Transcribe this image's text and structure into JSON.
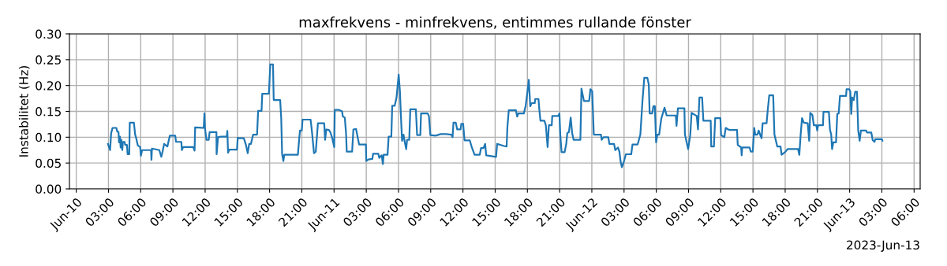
{
  "chart_data": {
    "type": "line",
    "title": "maxfrekvens - minfrekvens, entimmes rullande fönster",
    "ylabel": "Instabilitet (Hz)",
    "annotations": [
      "2023-Jun-13"
    ],
    "xlim": [
      "2023-06-09T23:22",
      "2023-06-13T06:34"
    ],
    "xticks": [
      {
        "value": "2023-06-10T00:00",
        "label": "Jun-10"
      },
      {
        "value": "2023-06-10T03:00",
        "label": "03:00"
      },
      {
        "value": "2023-06-10T06:00",
        "label": "06:00"
      },
      {
        "value": "2023-06-10T09:00",
        "label": "09:00"
      },
      {
        "value": "2023-06-10T12:00",
        "label": "12:00"
      },
      {
        "value": "2023-06-10T15:00",
        "label": "15:00"
      },
      {
        "value": "2023-06-10T18:00",
        "label": "18:00"
      },
      {
        "value": "2023-06-10T21:00",
        "label": "21:00"
      },
      {
        "value": "2023-06-11T00:00",
        "label": "Jun-11"
      },
      {
        "value": "2023-06-11T03:00",
        "label": "03:00"
      },
      {
        "value": "2023-06-11T06:00",
        "label": "06:00"
      },
      {
        "value": "2023-06-11T09:00",
        "label": "09:00"
      },
      {
        "value": "2023-06-11T12:00",
        "label": "12:00"
      },
      {
        "value": "2023-06-11T15:00",
        "label": "15:00"
      },
      {
        "value": "2023-06-11T18:00",
        "label": "18:00"
      },
      {
        "value": "2023-06-11T21:00",
        "label": "21:00"
      },
      {
        "value": "2023-06-12T00:00",
        "label": "Jun-12"
      },
      {
        "value": "2023-06-12T03:00",
        "label": "03:00"
      },
      {
        "value": "2023-06-12T06:00",
        "label": "06:00"
      },
      {
        "value": "2023-06-12T09:00",
        "label": "09:00"
      },
      {
        "value": "2023-06-12T12:00",
        "label": "12:00"
      },
      {
        "value": "2023-06-12T15:00",
        "label": "15:00"
      },
      {
        "value": "2023-06-12T18:00",
        "label": "18:00"
      },
      {
        "value": "2023-06-12T21:00",
        "label": "21:00"
      },
      {
        "value": "2023-06-13T00:00",
        "label": "Jun-13"
      },
      {
        "value": "2023-06-13T03:00",
        "label": "03:00"
      },
      {
        "value": "2023-06-13T06:00",
        "label": "06:00"
      }
    ],
    "ylim": [
      0,
      0.3
    ],
    "yticks": [
      {
        "value": 0,
        "label": "0.00"
      },
      {
        "value": 0.05,
        "label": "0.05"
      },
      {
        "value": 0.1,
        "label": "0.10"
      },
      {
        "value": 0.15,
        "label": "0.15"
      },
      {
        "value": 0.2,
        "label": "0.20"
      },
      {
        "value": 0.25,
        "label": "0.25"
      },
      {
        "value": 0.3,
        "label": "0.30"
      }
    ],
    "grid": true,
    "marker": "none",
    "line_style": "solid",
    "series": [
      {
        "color": "#1f77b4",
        "x": [
          "2023-06-10T02:57",
          "2023-06-10T03:09",
          "2023-06-10T03:15",
          "2023-06-10T03:23",
          "2023-06-10T03:44",
          "2023-06-10T03:49",
          "2023-06-10T03:56",
          "2023-06-10T03:59",
          "2023-06-10T04:04",
          "2023-06-10T04:08",
          "2023-06-10T04:12",
          "2023-06-10T04:17",
          "2023-06-10T04:21",
          "2023-06-10T04:30",
          "2023-06-10T04:33",
          "2023-06-10T04:43",
          "2023-06-10T04:47",
          "2023-06-10T04:56",
          "2023-06-10T04:59",
          "2023-06-10T05:22",
          "2023-06-10T05:29",
          "2023-06-10T05:35",
          "2023-06-10T05:44",
          "2023-06-10T05:57",
          "2023-06-10T06:01",
          "2023-06-10T06:08",
          "2023-06-10T06:58",
          "2023-06-10T07:00",
          "2023-06-10T07:03",
          "2023-06-10T07:44",
          "2023-06-10T07:55",
          "2023-06-10T08:02",
          "2023-06-10T08:11",
          "2023-06-10T08:29",
          "2023-06-10T08:43",
          "2023-06-10T09:13",
          "2023-06-10T09:17",
          "2023-06-10T09:47",
          "2023-06-10T09:50",
          "2023-06-10T09:57",
          "2023-06-10T10:53",
          "2023-06-10T11:01",
          "2023-06-10T11:04",
          "2023-06-10T11:52",
          "2023-06-10T11:56",
          "2023-06-10T11:59",
          "2023-06-10T12:07",
          "2023-06-10T12:20",
          "2023-06-10T12:25",
          "2023-06-10T13:03",
          "2023-06-10T13:04",
          "2023-06-10T13:12",
          "2023-06-10T13:28",
          "2023-06-10T14:01",
          "2023-06-10T14:04",
          "2023-06-10T14:08",
          "2023-06-10T14:15",
          "2023-06-10T14:58",
          "2023-06-10T15:02",
          "2023-06-10T15:10",
          "2023-06-10T15:36",
          "2023-06-10T15:48",
          "2023-06-10T15:58",
          "2023-06-10T16:06",
          "2023-06-10T16:16",
          "2023-06-10T16:28",
          "2023-06-10T16:50",
          "2023-06-10T16:56",
          "2023-06-10T17:15",
          "2023-06-10T17:19",
          "2023-06-10T17:56",
          "2023-06-10T18:04",
          "2023-06-10T18:19",
          "2023-06-10T18:23",
          "2023-06-10T18:59",
          "2023-06-10T19:05",
          "2023-06-10T19:10",
          "2023-06-10T19:17",
          "2023-06-10T19:22",
          "2023-06-10T20:38",
          "2023-06-10T20:46",
          "2023-06-10T20:50",
          "2023-06-10T21:00",
          "2023-06-10T21:04",
          "2023-06-10T21:49",
          "2023-06-10T21:56",
          "2023-06-10T22:08",
          "2023-06-10T22:18",
          "2023-06-10T22:30",
          "2023-06-10T23:05",
          "2023-06-10T23:10",
          "2023-06-10T23:17",
          "2023-06-10T23:31",
          "2023-06-10T23:39",
          "2023-06-10T23:50",
          "2023-06-11T00:01",
          "2023-06-11T00:04",
          "2023-06-11T00:26",
          "2023-06-11T00:45",
          "2023-06-11T00:49",
          "2023-06-11T01:00",
          "2023-06-11T01:07",
          "2023-06-11T01:11",
          "2023-06-11T01:41",
          "2023-06-11T01:48",
          "2023-06-11T02:03",
          "2023-06-11T02:13",
          "2023-06-11T02:20",
          "2023-06-11T02:58",
          "2023-06-11T03:00",
          "2023-06-11T03:12",
          "2023-06-11T03:34",
          "2023-06-11T03:38",
          "2023-06-11T04:07",
          "2023-06-11T04:13",
          "2023-06-11T04:26",
          "2023-06-11T04:33",
          "2023-06-11T04:37",
          "2023-06-11T04:59",
          "2023-06-11T05:05",
          "2023-06-11T05:20",
          "2023-06-11T05:25",
          "2023-06-11T05:39",
          "2023-06-11T05:49",
          "2023-06-11T06:01",
          "2023-06-11T06:08",
          "2023-06-11T06:13",
          "2023-06-11T06:20",
          "2023-06-11T06:28",
          "2023-06-11T06:35",
          "2023-06-11T06:43",
          "2023-06-11T06:48",
          "2023-06-11T07:00",
          "2023-06-11T07:06",
          "2023-06-11T07:37",
          "2023-06-11T07:44",
          "2023-06-11T08:02",
          "2023-06-11T08:06",
          "2023-06-11T08:43",
          "2023-06-11T08:50",
          "2023-06-11T08:58",
          "2023-06-11T09:27",
          "2023-06-11T09:56",
          "2023-06-11T10:26",
          "2023-06-11T10:55",
          "2023-06-11T11:02",
          "2023-06-11T11:07",
          "2023-06-11T11:20",
          "2023-06-11T11:28",
          "2023-06-11T11:47",
          "2023-06-11T11:51",
          "2023-06-11T12:01",
          "2023-06-11T12:09",
          "2023-06-11T12:38",
          "2023-06-11T12:50",
          "2023-06-11T13:05",
          "2023-06-11T13:34",
          "2023-06-11T13:41",
          "2023-06-11T13:55",
          "2023-06-11T14:04",
          "2023-06-11T14:10",
          "2023-06-11T15:05",
          "2023-06-11T15:11",
          "2023-06-11T15:49",
          "2023-06-11T16:04",
          "2023-06-11T16:08",
          "2023-06-11T16:16",
          "2023-06-11T16:56",
          "2023-06-11T17:03",
          "2023-06-11T17:10",
          "2023-06-11T17:40",
          "2023-06-11T17:50",
          "2023-06-11T17:59",
          "2023-06-11T18:08",
          "2023-06-11T18:16",
          "2023-06-11T18:24",
          "2023-06-11T18:41",
          "2023-06-11T18:44",
          "2023-06-11T19:02",
          "2023-06-11T19:06",
          "2023-06-11T19:13",
          "2023-06-11T19:35",
          "2023-06-11T19:43",
          "2023-06-11T19:53",
          "2023-06-11T20:00",
          "2023-06-11T20:16",
          "2023-06-11T20:19",
          "2023-06-11T20:53",
          "2023-06-11T20:59",
          "2023-06-11T21:04",
          "2023-06-11T21:11",
          "2023-06-11T21:28",
          "2023-06-11T21:37",
          "2023-06-11T21:43",
          "2023-06-11T21:52",
          "2023-06-11T22:02",
          "2023-06-11T22:10",
          "2023-06-11T22:18",
          "2023-06-11T22:56",
          "2023-06-11T23:02",
          "2023-06-11T23:16",
          "2023-06-11T23:45",
          "2023-06-11T23:52",
          "2023-06-12T00:02",
          "2023-06-12T00:11",
          "2023-06-12T00:51",
          "2023-06-12T00:55",
          "2023-06-12T01:05",
          "2023-06-12T01:32",
          "2023-06-12T01:38",
          "2023-06-12T02:04",
          "2023-06-12T02:11",
          "2023-06-12T02:26",
          "2023-06-12T02:34",
          "2023-06-12T02:41",
          "2023-06-12T02:48",
          "2023-06-12T03:00",
          "2023-06-12T03:10",
          "2023-06-12T03:40",
          "2023-06-12T03:47",
          "2023-06-12T04:16",
          "2023-06-12T04:31",
          "2023-06-12T04:43",
          "2023-06-12T04:53",
          "2023-06-12T05:10",
          "2023-06-12T05:18",
          "2023-06-12T05:23",
          "2023-06-12T05:37",
          "2023-06-12T05:44",
          "2023-06-12T05:52",
          "2023-06-12T05:59",
          "2023-06-12T06:06",
          "2023-06-12T06:16",
          "2023-06-12T06:28",
          "2023-06-12T06:46",
          "2023-06-12T06:58",
          "2023-06-12T07:49",
          "2023-06-12T07:53",
          "2023-06-12T08:01",
          "2023-06-12T08:37",
          "2023-06-12T08:40",
          "2023-06-12T08:58",
          "2023-06-12T09:10",
          "2023-06-12T09:17",
          "2023-06-12T09:46",
          "2023-06-12T09:53",
          "2023-06-12T10:01",
          "2023-06-12T10:16",
          "2023-06-12T10:23",
          "2023-06-12T11:04",
          "2023-06-12T11:07",
          "2023-06-12T11:22",
          "2023-06-12T11:29",
          "2023-06-12T11:58",
          "2023-06-12T12:02",
          "2023-06-12T12:20",
          "2023-06-12T12:28",
          "2023-06-12T12:42",
          "2023-06-12T12:50",
          "2023-06-12T13:31",
          "2023-06-12T13:35",
          "2023-06-12T13:54",
          "2023-06-12T13:57",
          "2023-06-12T14:00",
          "2023-06-12T14:41",
          "2023-06-12T14:48",
          "2023-06-12T14:59",
          "2023-06-12T15:07",
          "2023-06-12T15:13",
          "2023-06-12T15:25",
          "2023-06-12T15:32",
          "2023-06-12T15:40",
          "2023-06-12T15:48",
          "2023-06-12T15:54",
          "2023-06-12T16:16",
          "2023-06-12T16:23",
          "2023-06-12T16:31",
          "2023-06-12T16:53",
          "2023-06-12T17:00",
          "2023-06-12T17:07",
          "2023-06-12T17:16",
          "2023-06-12T17:34",
          "2023-06-12T17:40",
          "2023-06-12T17:59",
          "2023-06-12T18:13",
          "2023-06-12T19:12",
          "2023-06-12T19:19",
          "2023-06-12T19:26",
          "2023-06-12T19:34",
          "2023-06-12T19:44",
          "2023-06-12T20:06",
          "2023-06-12T20:14",
          "2023-06-12T20:20",
          "2023-06-12T20:32",
          "2023-06-12T20:40",
          "2023-06-12T20:54",
          "2023-06-12T20:59",
          "2023-06-12T21:04",
          "2023-06-12T21:31",
          "2023-06-12T21:34",
          "2023-06-12T22:04",
          "2023-06-12T22:10",
          "2023-06-12T22:17",
          "2023-06-12T22:22",
          "2023-06-12T22:29",
          "2023-06-12T22:44",
          "2023-06-12T22:51",
          "2023-06-12T22:59",
          "2023-06-12T23:06",
          "2023-06-12T23:40",
          "2023-06-12T23:43",
          "2023-06-12T23:57",
          "2023-06-13T00:04",
          "2023-06-13T00:09",
          "2023-06-13T00:14",
          "2023-06-13T00:23",
          "2023-06-13T00:31",
          "2023-06-13T00:41",
          "2023-06-13T00:48",
          "2023-06-13T00:56",
          "2023-06-13T01:03",
          "2023-06-13T01:32",
          "2023-06-13T01:37",
          "2023-06-13T02:01",
          "2023-06-13T02:09",
          "2023-06-13T02:19",
          "2023-06-13T02:23",
          "2023-06-13T03:00",
          "2023-06-13T03:03"
        ],
        "values": [
          0.087,
          0.075,
          0.108,
          0.118,
          0.118,
          0.111,
          0.11,
          0.09,
          0.101,
          0.08,
          0.095,
          0.075,
          0.091,
          0.091,
          0.085,
          0.085,
          0.067,
          0.067,
          0.128,
          0.128,
          0.105,
          0.098,
          0.084,
          0.081,
          0.064,
          0.075,
          0.075,
          0.056,
          0.078,
          0.075,
          0.062,
          0.072,
          0.087,
          0.082,
          0.103,
          0.103,
          0.091,
          0.091,
          0.075,
          0.081,
          0.081,
          0.074,
          0.119,
          0.118,
          0.146,
          0.118,
          0.095,
          0.095,
          0.11,
          0.11,
          0.067,
          0.1,
          0.101,
          0.101,
          0.112,
          0.07,
          0.076,
          0.076,
          0.099,
          0.098,
          0.098,
          0.085,
          0.069,
          0.087,
          0.087,
          0.105,
          0.105,
          0.151,
          0.151,
          0.184,
          0.184,
          0.241,
          0.241,
          0.172,
          0.172,
          0.136,
          0.067,
          0.054,
          0.066,
          0.066,
          0.1,
          0.113,
          0.113,
          0.134,
          0.134,
          0.113,
          0.069,
          0.072,
          0.127,
          0.127,
          0.095,
          0.115,
          0.114,
          0.11,
          0.098,
          0.081,
          0.153,
          0.153,
          0.15,
          0.14,
          0.138,
          0.108,
          0.072,
          0.072,
          0.115,
          0.116,
          0.098,
          0.086,
          0.086,
          0.054,
          0.057,
          0.058,
          0.068,
          0.068,
          0.06,
          0.065,
          0.048,
          0.066,
          0.066,
          0.101,
          0.101,
          0.161,
          0.161,
          0.177,
          0.221,
          0.189,
          0.146,
          0.093,
          0.105,
          0.091,
          0.077,
          0.095,
          0.095,
          0.154,
          0.154,
          0.104,
          0.104,
          0.146,
          0.146,
          0.141,
          0.104,
          0.103,
          0.106,
          0.106,
          0.105,
          0.1,
          0.128,
          0.128,
          0.115,
          0.115,
          0.126,
          0.126,
          0.094,
          0.094,
          0.08,
          0.066,
          0.066,
          0.079,
          0.079,
          0.087,
          0.065,
          0.062,
          0.087,
          0.083,
          0.082,
          0.118,
          0.152,
          0.152,
          0.14,
          0.146,
          0.146,
          0.16,
          0.184,
          0.211,
          0.16,
          0.166,
          0.166,
          0.174,
          0.174,
          0.156,
          0.132,
          0.132,
          0.123,
          0.081,
          0.123,
          0.123,
          0.141,
          0.141,
          0.146,
          0.103,
          0.071,
          0.071,
          0.087,
          0.108,
          0.11,
          0.138,
          0.108,
          0.095,
          0.095,
          0.194,
          0.17,
          0.17,
          0.193,
          0.189,
          0.105,
          0.105,
          0.095,
          0.1,
          0.1,
          0.087,
          0.087,
          0.075,
          0.08,
          0.072,
          0.052,
          0.042,
          0.054,
          0.067,
          0.067,
          0.086,
          0.086,
          0.105,
          0.171,
          0.215,
          0.215,
          0.202,
          0.146,
          0.146,
          0.16,
          0.16,
          0.09,
          0.105,
          0.105,
          0.136,
          0.157,
          0.142,
          0.142,
          0.122,
          0.156,
          0.156,
          0.105,
          0.077,
          0.105,
          0.147,
          0.141,
          0.115,
          0.177,
          0.177,
          0.132,
          0.132,
          0.082,
          0.082,
          0.137,
          0.137,
          0.104,
          0.1,
          0.118,
          0.115,
          0.114,
          0.114,
          0.085,
          0.08,
          0.065,
          0.08,
          0.08,
          0.072,
          0.072,
          0.118,
          0.105,
          0.105,
          0.113,
          0.105,
          0.098,
          0.127,
          0.127,
          0.154,
          0.181,
          0.181,
          0.105,
          0.095,
          0.082,
          0.082,
          0.066,
          0.071,
          0.077,
          0.077,
          0.066,
          0.103,
          0.137,
          0.128,
          0.127,
          0.093,
          0.147,
          0.143,
          0.123,
          0.123,
          0.113,
          0.123,
          0.123,
          0.149,
          0.149,
          0.115,
          0.105,
          0.077,
          0.09,
          0.09,
          0.145,
          0.146,
          0.18,
          0.18,
          0.193,
          0.193,
          0.188,
          0.145,
          0.177,
          0.172,
          0.188,
          0.188,
          0.113,
          0.093,
          0.113,
          0.113,
          0.109,
          0.109,
          0.094,
          0.091,
          0.096,
          0.096,
          0.093
        ]
      }
    ]
  }
}
